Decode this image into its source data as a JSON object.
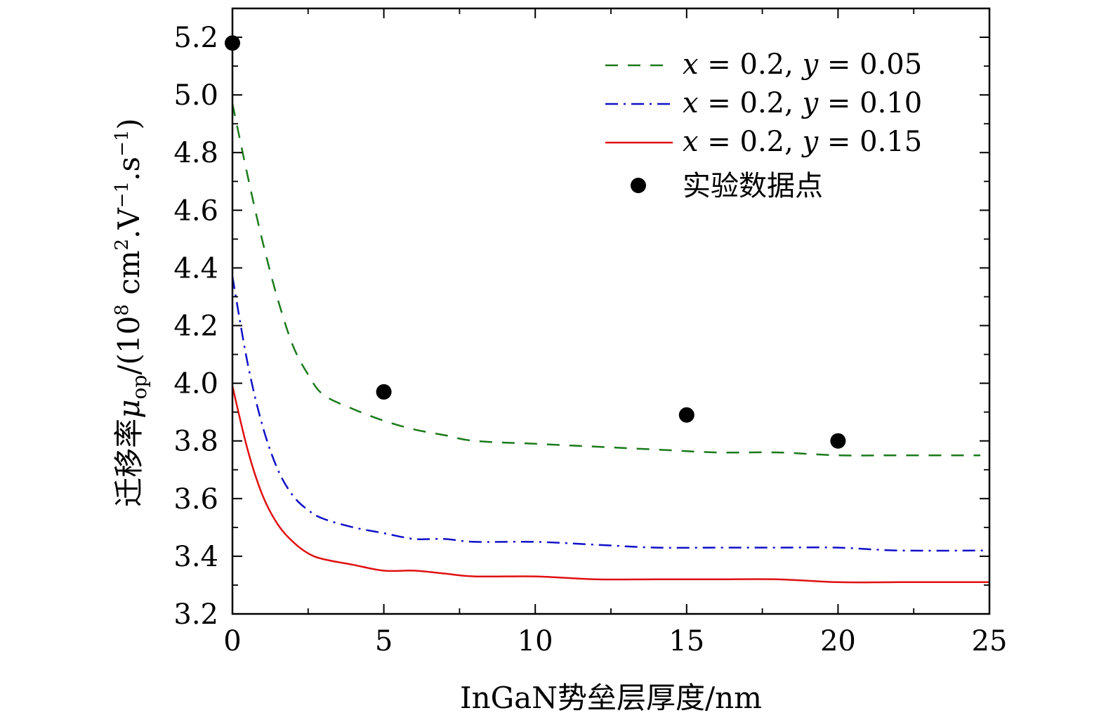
{
  "chart_data": {
    "type": "line",
    "xlabel": "InGaN势垒层厚度/nm",
    "ylabel": {
      "prefix": "迁移率",
      "symbol": "μ",
      "subscript": "op",
      "unit_open": "/(10",
      "unit_exp": "8",
      "unit_mid": " cm",
      "unit_sq": "2",
      "unit_v": ".V",
      "unit_neg1": "−1",
      "unit_s": ".s",
      "unit_neg1b": "−1",
      "unit_close": ")"
    },
    "xlim": [
      0,
      25
    ],
    "ylim": [
      3.2,
      5.3
    ],
    "x_ticks": [
      0,
      5,
      10,
      15,
      20,
      25
    ],
    "x_tick_labels": [
      "0",
      "5",
      "10",
      "15",
      "20",
      "25"
    ],
    "y_ticks": [
      3.2,
      3.4,
      3.6,
      3.8,
      4.0,
      4.2,
      4.4,
      4.6,
      4.8,
      5.0,
      5.2
    ],
    "y_tick_labels": [
      "3.2",
      "3.4",
      "3.6",
      "3.8",
      "4.0",
      "4.2",
      "4.4",
      "4.6",
      "4.8",
      "5.0",
      "5.2"
    ],
    "grid": false,
    "legend_position": "top-right",
    "series": [
      {
        "name": "x = 0.2, y = 0.05",
        "legend_x": "x",
        "legend_x_val": "0.2",
        "legend_y": "y",
        "legend_y_val": "0.05",
        "color": "#1a7a1a",
        "style": "dashed",
        "x": [
          0,
          0.5,
          1,
          1.5,
          2,
          2.5,
          3,
          4,
          5,
          6,
          7,
          8,
          10,
          12,
          14,
          16,
          18,
          20,
          22,
          24.7
        ],
        "y": [
          4.97,
          4.72,
          4.49,
          4.29,
          4.13,
          4.03,
          3.96,
          3.91,
          3.87,
          3.84,
          3.82,
          3.8,
          3.79,
          3.78,
          3.77,
          3.76,
          3.76,
          3.75,
          3.75,
          3.75
        ]
      },
      {
        "name": "x = 0.2, y = 0.10",
        "legend_x": "x",
        "legend_x_val": "0.2",
        "legend_y": "y",
        "legend_y_val": "0.10",
        "color": "#1010c8",
        "style": "dashdot",
        "x": [
          0,
          0.5,
          1,
          1.5,
          2,
          2.5,
          3,
          4,
          5,
          6,
          7,
          8,
          10,
          12,
          14,
          16,
          18,
          20,
          22,
          25
        ],
        "y": [
          4.37,
          4.07,
          3.85,
          3.7,
          3.61,
          3.56,
          3.53,
          3.5,
          3.48,
          3.46,
          3.46,
          3.45,
          3.45,
          3.44,
          3.43,
          3.43,
          3.43,
          3.43,
          3.42,
          3.42
        ]
      },
      {
        "name": "x = 0.2, y = 0.15",
        "legend_x": "x",
        "legend_x_val": "0.2",
        "legend_y": "y",
        "legend_y_val": "0.15",
        "color": "#e01010",
        "style": "solid",
        "x": [
          0,
          0.5,
          1,
          1.5,
          2,
          2.5,
          3,
          4,
          5,
          6,
          7,
          8,
          10,
          12,
          14,
          16,
          18,
          20,
          22,
          25
        ],
        "y": [
          3.99,
          3.77,
          3.61,
          3.51,
          3.45,
          3.41,
          3.39,
          3.37,
          3.35,
          3.35,
          3.34,
          3.33,
          3.33,
          3.32,
          3.32,
          3.32,
          3.32,
          3.31,
          3.31,
          3.31
        ]
      }
    ],
    "points": {
      "name": "实验数据点",
      "color": "#000000",
      "x": [
        0,
        5,
        15,
        20
      ],
      "y": [
        5.18,
        3.97,
        3.89,
        3.8
      ]
    }
  }
}
